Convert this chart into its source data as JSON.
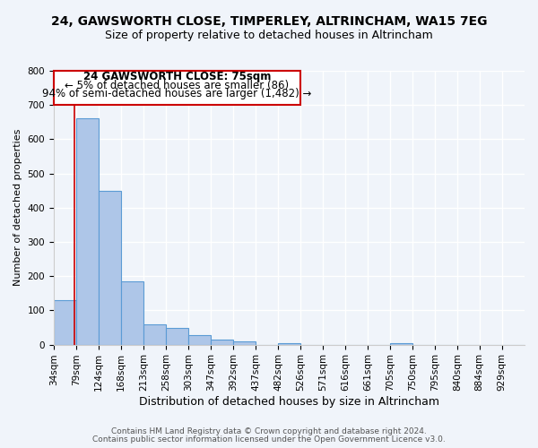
{
  "title": "24, GAWSWORTH CLOSE, TIMPERLEY, ALTRINCHAM, WA15 7EG",
  "subtitle": "Size of property relative to detached houses in Altrincham",
  "xlabel": "Distribution of detached houses by size in Altrincham",
  "ylabel": "Number of detached properties",
  "bin_labels": [
    "34sqm",
    "79sqm",
    "124sqm",
    "168sqm",
    "213sqm",
    "258sqm",
    "303sqm",
    "347sqm",
    "392sqm",
    "437sqm",
    "482sqm",
    "526sqm",
    "571sqm",
    "616sqm",
    "661sqm",
    "705sqm",
    "750sqm",
    "795sqm",
    "840sqm",
    "884sqm",
    "929sqm"
  ],
  "bar_heights": [
    130,
    660,
    450,
    185,
    58,
    48,
    27,
    14,
    10,
    0,
    5,
    0,
    0,
    0,
    0,
    3,
    0,
    0,
    0,
    0,
    0
  ],
  "bar_color": "#aec6e8",
  "bar_edge_color": "#5b9bd5",
  "annotation_text_line1": "24 GAWSWORTH CLOSE: 75sqm",
  "annotation_text_line2": "← 5% of detached houses are smaller (86)",
  "annotation_text_line3": "94% of semi-detached houses are larger (1,482) →",
  "red_line_color": "#cc0000",
  "box_edge_color": "#cc0000",
  "ylim": [
    0,
    800
  ],
  "yticks": [
    0,
    100,
    200,
    300,
    400,
    500,
    600,
    700,
    800
  ],
  "footer_line1": "Contains HM Land Registry data © Crown copyright and database right 2024.",
  "footer_line2": "Contains public sector information licensed under the Open Government Licence v3.0.",
  "bg_color": "#f0f4fa",
  "grid_color": "#ffffff",
  "title_fontsize": 10,
  "subtitle_fontsize": 9,
  "xlabel_fontsize": 9,
  "ylabel_fontsize": 8,
  "tick_fontsize": 7.5,
  "annotation_fontsize": 8.5,
  "footer_fontsize": 6.5
}
